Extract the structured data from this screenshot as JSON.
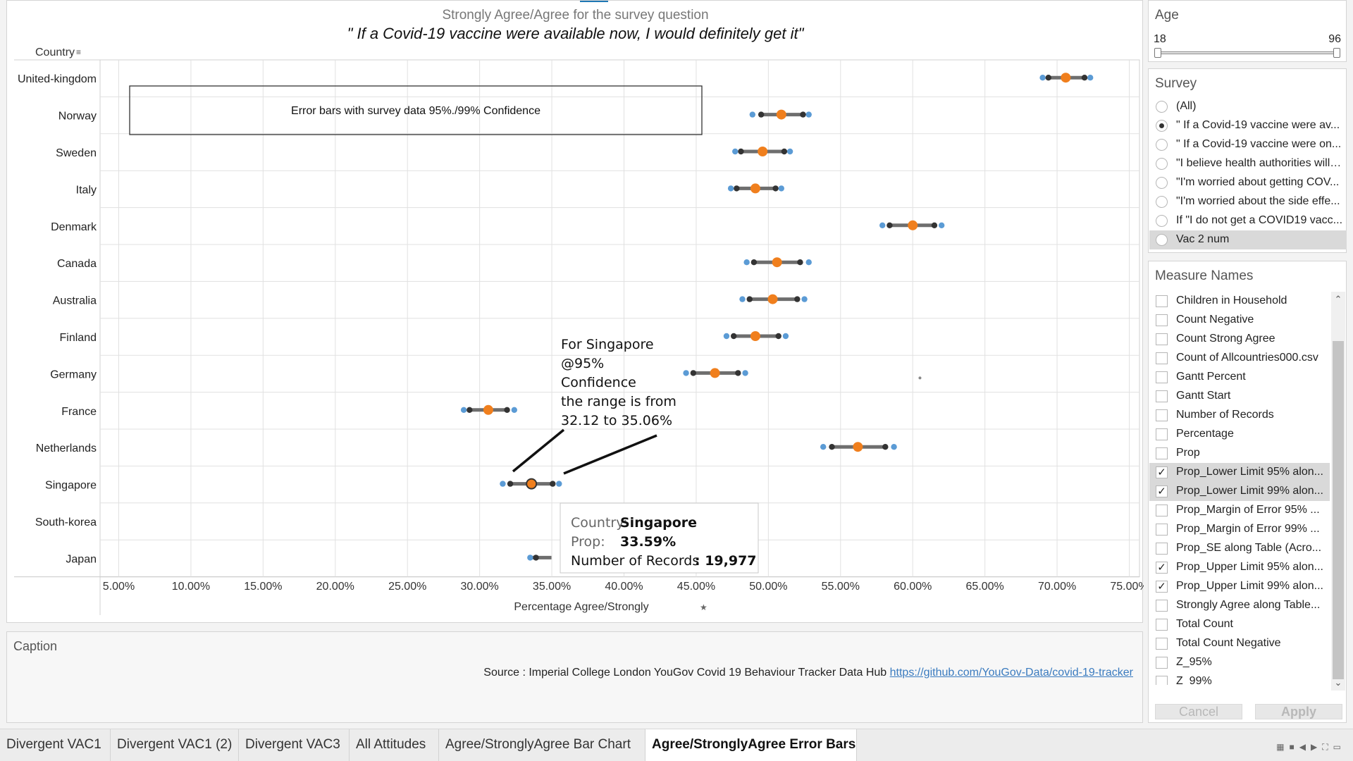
{
  "chart": {
    "title_line1": "Strongly Agree/Agree for the survey question",
    "title_line2": "\" If a Covid-19 vaccine were available now, I would definitely get it\"",
    "country_header": "Country",
    "xaxis_title": "Percentage Agree/Strongly",
    "annotation_box_text": "Error bars with survey data 95%./99% Confidence",
    "callout": [
      "For Singapore",
      "@95%",
      "Confidence",
      "the range is from",
      "32.12 to 35.06%"
    ],
    "tooltip": {
      "country_label": "Country:",
      "country_value": "Singapore",
      "prop_label": "Prop:",
      "prop_value": "33.59%",
      "records_label": "Number of Records",
      "records_value": ": 19,977"
    }
  },
  "chart_data": {
    "type": "scatter",
    "title": "Strongly Agree/Agree for the survey question",
    "subtitle": "\" If a Covid-19 vaccine were available now, I would definitely get it\"",
    "xlabel": "Percentage Agree/Strongly",
    "ylabel": "Country",
    "xlim": [
      4.0,
      76.0
    ],
    "x_ticks": [
      "5.00%",
      "10.00%",
      "15.00%",
      "20.00%",
      "25.00%",
      "30.00%",
      "35.00%",
      "40.00%",
      "45.00%",
      "50.00%",
      "55.00%",
      "60.00%",
      "65.00%",
      "70.00%",
      "75.00%"
    ],
    "x_tick_values": [
      5,
      10,
      15,
      20,
      25,
      30,
      35,
      40,
      45,
      50,
      55,
      60,
      65,
      70,
      75
    ],
    "grid": true,
    "series": [
      {
        "name": "Prop",
        "color": "#f07f1d"
      },
      {
        "name": "Prop_Lower Limit 95% alon...",
        "color": "#3a3a3a"
      },
      {
        "name": "Prop_Lower Limit 99% alon...",
        "color": "#5b9bd5"
      },
      {
        "name": "Prop_Upper Limit 95% alon...",
        "color": "#3a3a3a"
      },
      {
        "name": "Prop_Upper Limit 99% alon...",
        "color": "#5b9bd5"
      }
    ],
    "rows": [
      {
        "country": "United-kingdom",
        "prop": 70.6,
        "l95": 69.4,
        "u95": 71.9,
        "l99": 69.0,
        "u99": 72.3
      },
      {
        "country": "Norway",
        "prop": 50.9,
        "l95": 49.5,
        "u95": 52.4,
        "l99": 48.9,
        "u99": 52.8
      },
      {
        "country": "Sweden",
        "prop": 49.6,
        "l95": 48.1,
        "u95": 51.1,
        "l99": 47.7,
        "u99": 51.5
      },
      {
        "country": "Italy",
        "prop": 49.1,
        "l95": 47.8,
        "u95": 50.5,
        "l99": 47.4,
        "u99": 50.9
      },
      {
        "country": "Denmark",
        "prop": 60.0,
        "l95": 58.4,
        "u95": 61.5,
        "l99": 57.9,
        "u99": 62.0
      },
      {
        "country": "Canada",
        "prop": 50.6,
        "l95": 49.0,
        "u95": 52.2,
        "l99": 48.5,
        "u99": 52.8
      },
      {
        "country": "Australia",
        "prop": 50.3,
        "l95": 48.7,
        "u95": 52.0,
        "l99": 48.2,
        "u99": 52.5
      },
      {
        "country": "Finland",
        "prop": 49.1,
        "l95": 47.6,
        "u95": 50.7,
        "l99": 47.1,
        "u99": 51.2
      },
      {
        "country": "Germany",
        "prop": 46.3,
        "l95": 44.8,
        "u95": 47.9,
        "l99": 44.3,
        "u99": 48.4
      },
      {
        "country": "France",
        "prop": 30.6,
        "l95": 29.3,
        "u95": 31.9,
        "l99": 28.9,
        "u99": 32.4
      },
      {
        "country": "Netherlands",
        "prop": 56.2,
        "l95": 54.4,
        "u95": 58.1,
        "l99": 53.8,
        "u99": 58.7
      },
      {
        "country": "Singapore",
        "prop": 33.59,
        "l95": 32.12,
        "u95": 35.06,
        "l99": 31.6,
        "u99": 35.5
      },
      {
        "country": "South-korea",
        "prop": null,
        "l95": null,
        "u95": null,
        "l99": null,
        "u99": null
      },
      {
        "country": "Japan",
        "prop": null,
        "l95": 33.9,
        "u95": null,
        "l99": 33.5,
        "u99": null
      }
    ],
    "stray_point": {
      "x": 60.5,
      "row": "Germany"
    }
  },
  "caption": {
    "title": "Caption",
    "source_prefix": "Source : Imperial College London YouGov Covid 19 Behaviour Tracker Data Hub ",
    "link_text": "https://github.com/YouGov-Data/covid-19-tracker"
  },
  "age_filter": {
    "title": "Age",
    "min": "18",
    "max": "96",
    "low": 18,
    "high": 96
  },
  "survey_filter": {
    "title": "Survey",
    "options": [
      {
        "label": "(All)",
        "checked": false
      },
      {
        "label": "\" If a Covid-19 vaccine were av...",
        "checked": true
      },
      {
        "label": "\" If a Covid-19 vaccine were on...",
        "checked": false
      },
      {
        "label": "\"I believe health authorities will ...",
        "checked": false
      },
      {
        "label": "\"I'm worried about getting COV...",
        "checked": false
      },
      {
        "label": "\"I'm worried about the side effe...",
        "checked": false
      },
      {
        "label": "If \"I do not get a COVID19 vacc...",
        "checked": false
      },
      {
        "label": "Vac 2 num",
        "checked": false
      }
    ]
  },
  "measure_names": {
    "title": "Measure Names",
    "items": [
      {
        "label": "Children in Household",
        "checked": false
      },
      {
        "label": "Count Negative",
        "checked": false
      },
      {
        "label": "Count Strong Agree",
        "checked": false
      },
      {
        "label": "Count of Allcountries000.csv",
        "checked": false
      },
      {
        "label": "Gantt Percent",
        "checked": false
      },
      {
        "label": "Gantt Start",
        "checked": false
      },
      {
        "label": "Number of Records",
        "checked": false
      },
      {
        "label": "Percentage",
        "checked": false
      },
      {
        "label": "Prop",
        "checked": false
      },
      {
        "label": "Prop_Lower Limit 95% alon...",
        "checked": true
      },
      {
        "label": "Prop_Lower Limit 99% alon...",
        "checked": true
      },
      {
        "label": "Prop_Margin of Error 95% ...",
        "checked": false
      },
      {
        "label": "Prop_Margin of Error 99% ...",
        "checked": false
      },
      {
        "label": "Prop_SE along Table (Acro...",
        "checked": false
      },
      {
        "label": "Prop_Upper Limit 95% alon...",
        "checked": true
      },
      {
        "label": "Prop_Upper Limit 99% alon...",
        "checked": true
      },
      {
        "label": "Strongly Agree along Table...",
        "checked": false
      },
      {
        "label": "Total Count",
        "checked": false
      },
      {
        "label": "Total Count Negative",
        "checked": false
      },
      {
        "label": "Z_95%",
        "checked": false
      },
      {
        "label": "Z_99%",
        "checked": false
      }
    ],
    "cancel_label": "Cancel",
    "apply_label": "Apply"
  },
  "tabs": [
    {
      "label": "Divergent VAC1",
      "active": false
    },
    {
      "label": "Divergent VAC1 (2)",
      "active": false
    },
    {
      "label": "Divergent VAC3",
      "active": false
    },
    {
      "label": "All Attitudes",
      "active": false
    },
    {
      "label": "Agree/StronglyAgree Bar Chart",
      "active": false
    },
    {
      "label": "Agree/StronglyAgree Error Bars",
      "active": true
    }
  ]
}
